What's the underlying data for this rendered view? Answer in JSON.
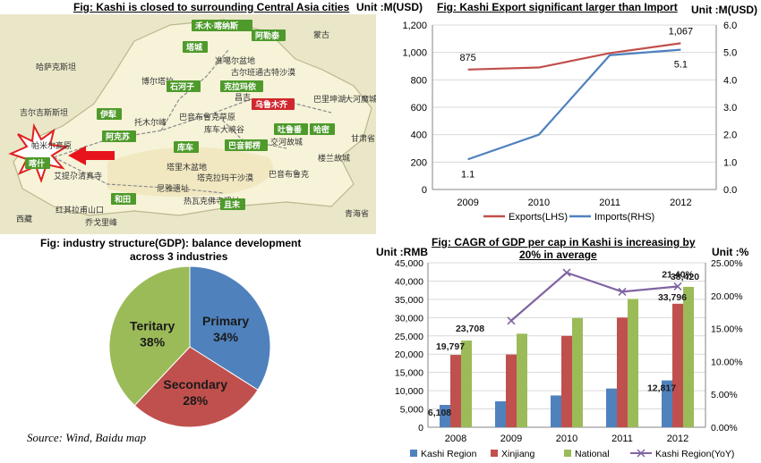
{
  "map": {
    "title": "Fig: Kashi is closed to surrounding Central Asia cities",
    "labels": [
      {
        "text": "禾木·喀纳斯",
        "kind": "green"
      },
      {
        "text": "阿勒泰",
        "kind": "green"
      },
      {
        "text": "蒙古",
        "kind": "plain"
      },
      {
        "text": "哈萨克斯坦",
        "kind": "plain"
      },
      {
        "text": "塔城",
        "kind": "green"
      },
      {
        "text": "准噶尔盆地",
        "kind": "plain"
      },
      {
        "text": "古尔班通古特沙漠",
        "kind": "plain"
      },
      {
        "text": "博尔塔拉",
        "kind": "plain"
      },
      {
        "text": "石河子",
        "kind": "green"
      },
      {
        "text": "克拉玛依",
        "kind": "green"
      },
      {
        "text": "昌吉",
        "kind": "plain"
      },
      {
        "text": "乌鲁木齐",
        "kind": "red"
      },
      {
        "text": "巴里坤湖",
        "kind": "plain"
      },
      {
        "text": "大河魔城",
        "kind": "plain"
      },
      {
        "text": "吉尔吉斯斯坦",
        "kind": "plain"
      },
      {
        "text": "伊犁",
        "kind": "green"
      },
      {
        "text": "托木尔峰",
        "kind": "plain"
      },
      {
        "text": "巴音布鲁克草原",
        "kind": "plain"
      },
      {
        "text": "阿克苏",
        "kind": "green"
      },
      {
        "text": "库车大峡谷",
        "kind": "plain"
      },
      {
        "text": "吐鲁番",
        "kind": "green"
      },
      {
        "text": "哈密",
        "kind": "green"
      },
      {
        "text": "交河故城",
        "kind": "plain"
      },
      {
        "text": "帕米尔高原",
        "kind": "plain"
      },
      {
        "text": "库车",
        "kind": "green"
      },
      {
        "text": "巴音郭楞",
        "kind": "green"
      },
      {
        "text": "塔里木盆地",
        "kind": "plain"
      },
      {
        "text": "塔克拉玛干沙漠",
        "kind": "plain"
      },
      {
        "text": "楼兰故城",
        "kind": "plain"
      },
      {
        "text": "喀什",
        "kind": "green"
      },
      {
        "text": "艾提尕清真寺",
        "kind": "plain"
      },
      {
        "text": "巴音布鲁克",
        "kind": "plain"
      },
      {
        "text": "尼雅遗址",
        "kind": "plain"
      },
      {
        "text": "和田",
        "kind": "green"
      },
      {
        "text": "热瓦克佛寺遗址",
        "kind": "plain"
      },
      {
        "text": "且末",
        "kind": "green"
      },
      {
        "text": "红其拉甫山口",
        "kind": "plain"
      },
      {
        "text": "乔戈里峰",
        "kind": "plain"
      },
      {
        "text": "甘肃省",
        "kind": "plain"
      },
      {
        "text": "青海省",
        "kind": "plain"
      },
      {
        "text": "西藏",
        "kind": "plain"
      }
    ],
    "colors": {
      "land": "#f6f3d8",
      "outside": "#eae7c8",
      "highlight": "#d5372b",
      "label_green": "#4e9a2b",
      "label_red": "#d0282e"
    }
  },
  "chart_data": [
    {
      "type": "line",
      "title": "Fig: Kashi Export significant larger than Import",
      "y_left_label": "Unit :M(USD)",
      "y_right_label": "Unit :M(USD)",
      "categories": [
        "2009",
        "2010",
        "2011",
        "2012"
      ],
      "ylim_left": [
        0,
        1200
      ],
      "ylim_right": [
        0,
        6
      ],
      "left_ticks": [
        "0",
        "200",
        "400",
        "600",
        "800",
        "1,000",
        "1,200"
      ],
      "right_ticks": [
        "0.0",
        "1.0",
        "2.0",
        "3.0",
        "4.0",
        "5.0",
        "6.0"
      ],
      "grid": true,
      "legend_position": "bottom",
      "series": [
        {
          "name": "Exports(LHS)",
          "axis": "left",
          "values": [
            875,
            890,
            995,
            1067
          ],
          "color": "#c0504d"
        },
        {
          "name": "Imports(RHS)",
          "axis": "right",
          "values": [
            1.1,
            2.0,
            4.9,
            5.1
          ],
          "color": "#4f81bd"
        }
      ],
      "data_labels": [
        {
          "text": "875",
          "series": 0,
          "index": 0,
          "pos": "above"
        },
        {
          "text": "1,067",
          "series": 0,
          "index": 3,
          "pos": "above"
        },
        {
          "text": "5.1",
          "series": 1,
          "index": 3,
          "pos": "below"
        },
        {
          "text": "1.1",
          "series": 1,
          "index": 0,
          "pos": "below"
        }
      ]
    },
    {
      "type": "pie",
      "title_line1": "Fig: industry  structure(GDP): balance development",
      "title_line2": "across 3 industries",
      "slices": [
        {
          "label": "Primary",
          "pct": "34%",
          "value": 34,
          "color": "#4f81bd"
        },
        {
          "label": "Secondary",
          "pct": "28%",
          "value": 28,
          "color": "#c0504d"
        },
        {
          "label": "Teritary",
          "pct": "38%",
          "value": 38,
          "color": "#9bbb59"
        }
      ]
    },
    {
      "type": "bar",
      "title_line1": "Fig: CAGR  of GDP  per cap in Kashi is increasing by",
      "title_line2": "20%   in average",
      "y_left_label": "Unit :RMB",
      "y_right_label": "Unit :%",
      "categories": [
        "2008",
        "2009",
        "2010",
        "2011",
        "2012"
      ],
      "ylim_left": [
        0,
        45000
      ],
      "ylim_right": [
        0,
        25
      ],
      "left_ticks": [
        "0",
        "5,000",
        "10,000",
        "15,000",
        "20,000",
        "25,000",
        "30,000",
        "35,000",
        "40,000",
        "45,000"
      ],
      "right_ticks": [
        "0.00%",
        "5.00%",
        "10.00%",
        "15.00%",
        "20.00%",
        "25.00%"
      ],
      "grid": true,
      "legend_position": "bottom",
      "series": [
        {
          "name": "Kashi Region",
          "type": "bar",
          "values": [
            6108,
            7100,
            8700,
            10600,
            12817
          ],
          "color": "#4f81bd"
        },
        {
          "name": "Xinjiang",
          "type": "bar",
          "values": [
            19797,
            19900,
            25000,
            30000,
            33796
          ],
          "color": "#c0504d"
        },
        {
          "name": "National",
          "type": "bar",
          "values": [
            23708,
            25600,
            29900,
            35100,
            38420
          ],
          "color": "#9bbb59"
        },
        {
          "name": "Kashi Region(YoY)",
          "type": "line",
          "axis": "right",
          "values": [
            null,
            16.2,
            23.5,
            20.6,
            21.4
          ],
          "color": "#8064a2"
        }
      ],
      "data_labels": [
        {
          "text": "6,108",
          "series": 0,
          "index": 0
        },
        {
          "text": "19,797",
          "series": 1,
          "index": 0
        },
        {
          "text": "23,708",
          "series": 2,
          "index": 0
        },
        {
          "text": "12,817",
          "series": 0,
          "index": 4
        },
        {
          "text": "33,796",
          "series": 1,
          "index": 4
        },
        {
          "text": "38,420",
          "series": 2,
          "index": 4
        },
        {
          "text": "21.40%",
          "series": 3,
          "index": 4
        }
      ]
    }
  ],
  "footer": {
    "source": "Source: Wind, Baidu map"
  }
}
